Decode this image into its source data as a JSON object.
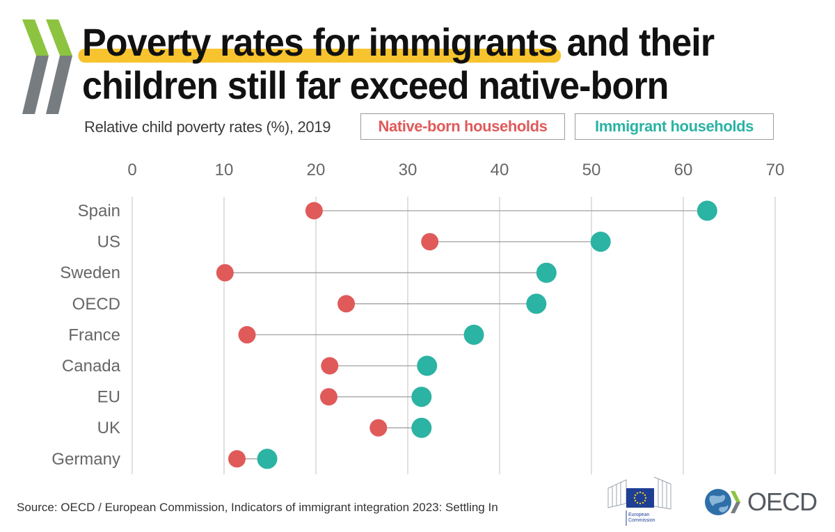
{
  "header": {
    "title_highlight": "Poverty rates for immigrants",
    "title_rest_line1": "and their",
    "title_line2": "children still far exceed native-born",
    "subtitle": "Relative child poverty rates (%), 2019"
  },
  "legend": {
    "native": "Native-born households",
    "immigrant": "Immigrant households"
  },
  "colors": {
    "native": "#e05a5a",
    "immigrant": "#2bb3a3",
    "highlight": "#f7c42f",
    "grid": "#cfcfcf",
    "connector": "#a0a0a0"
  },
  "chart_data": {
    "type": "dumbbell",
    "title": "Relative child poverty rates (%), 2019",
    "x_ticks": [
      0,
      10,
      20,
      30,
      40,
      50,
      60,
      70
    ],
    "xlim": [
      0,
      70
    ],
    "grid": true,
    "categories": [
      "Spain",
      "US",
      "Sweden",
      "OECD",
      "France",
      "Canada",
      "EU",
      "UK",
      "Germany"
    ],
    "series": [
      {
        "name": "Native-born households",
        "values": [
          19.8,
          32.4,
          10.1,
          23.3,
          12.5,
          21.5,
          21.4,
          26.8,
          11.4
        ]
      },
      {
        "name": "Immigrant households",
        "values": [
          62.6,
          51.0,
          45.1,
          44.0,
          37.2,
          32.1,
          31.5,
          31.5,
          14.7
        ]
      }
    ]
  },
  "footer": {
    "source": "Source:  OECD / European Commission, Indicators of immigrant integration 2023: Settling In",
    "eu_label_1": "European",
    "eu_label_2": "Commission",
    "oecd_label": "OECD"
  }
}
